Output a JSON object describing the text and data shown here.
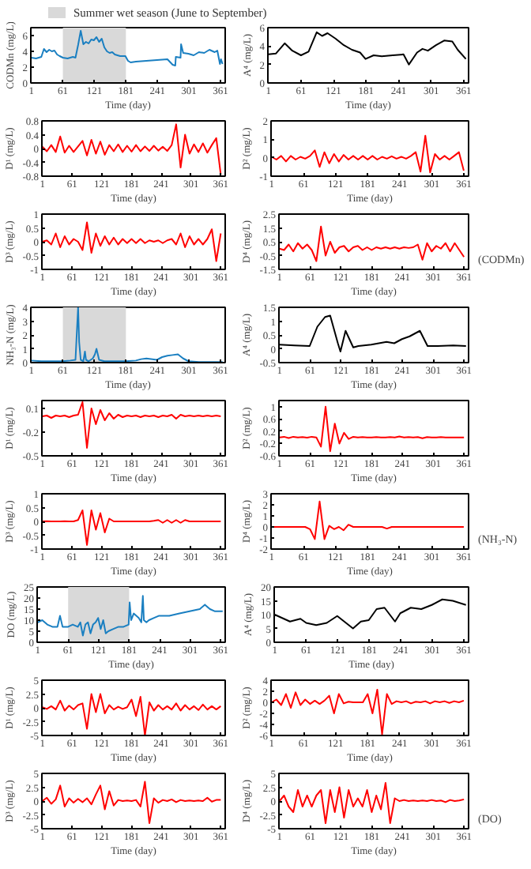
{
  "chart_data": [
    {
      "type": "line",
      "ylabel": "CODMn (mg/L)",
      "xlabel": "Time (day)",
      "xlim": [
        0,
        370
      ],
      "xticks": [
        1,
        61,
        121,
        181,
        241,
        301,
        361
      ],
      "ylim": [
        0,
        7
      ],
      "yticks": [
        0,
        2,
        4,
        6
      ],
      "legend": "top",
      "bands": [
        {
          "axis": "x",
          "from": 61,
          "to": 181,
          "label": "Summer wet season (June to September)",
          "color": "#d9d9d9"
        }
      ],
      "series": [
        {
          "color": "#1a7fc1",
          "x": [
            1,
            10,
            20,
            25,
            30,
            35,
            40,
            45,
            50,
            55,
            61,
            70,
            80,
            85,
            90,
            95,
            100,
            105,
            110,
            115,
            120,
            125,
            130,
            135,
            140,
            145,
            150,
            155,
            160,
            170,
            180,
            185,
            190,
            200,
            220,
            240,
            260,
            270,
            275,
            276,
            285,
            286,
            290,
            300,
            310,
            320,
            330,
            340,
            350,
            355,
            360,
            362,
            365
          ],
          "values": [
            3.2,
            3.1,
            3.3,
            4.3,
            3.9,
            4.2,
            4,
            4.1,
            3.6,
            3.4,
            3.2,
            3.1,
            3.3,
            3.2,
            4.8,
            6.6,
            4.9,
            5.2,
            5.0,
            5.5,
            5.4,
            5.8,
            5.2,
            5.6,
            4.5,
            4.0,
            3.8,
            3.9,
            3.6,
            3.4,
            3.4,
            2.8,
            2.6,
            2.7,
            2.8,
            2.9,
            3.0,
            2.3,
            2.2,
            3.3,
            3.2,
            4.9,
            3.8,
            3.7,
            3.5,
            3.9,
            3.8,
            4.2,
            3.9,
            4.1,
            2.4,
            3.0,
            2.4
          ]
        }
      ]
    },
    {
      "type": "line",
      "ylabel": "A⁴ (mg/L)",
      "xlabel": "Time (day)",
      "xlim": [
        0,
        370
      ],
      "xticks": [
        1,
        61,
        121,
        181,
        241,
        301,
        361
      ],
      "ylim": [
        0,
        6
      ],
      "yticks": [
        0,
        2,
        4,
        6
      ],
      "series": [
        {
          "color": "#000000",
          "x": [
            1,
            15,
            31,
            45,
            61,
            75,
            90,
            100,
            110,
            125,
            140,
            155,
            170,
            180,
            195,
            210,
            230,
            250,
            260,
            275,
            285,
            295,
            310,
            325,
            340,
            350,
            365
          ],
          "values": [
            3.1,
            3.2,
            4.3,
            3.5,
            3.0,
            3.4,
            5.5,
            5.1,
            5.4,
            4.8,
            4.1,
            3.6,
            3.3,
            2.6,
            3.0,
            2.9,
            3.0,
            3.1,
            2.0,
            3.3,
            3.7,
            3.5,
            4.1,
            4.6,
            4.5,
            3.6,
            2.6
          ]
        }
      ]
    },
    {
      "type": "line",
      "ylabel": "D¹ (mg/L)",
      "xlabel": "Time (day)",
      "xlim": [
        0,
        370
      ],
      "xticks": [
        1,
        61,
        121,
        181,
        241,
        301,
        361
      ],
      "ylim": [
        -0.8,
        0.8
      ],
      "yticks": [
        -0.8,
        -0.4,
        0,
        0.4,
        0.8
      ],
      "x": [
        1,
        10,
        19,
        28,
        37,
        46,
        55,
        64,
        73,
        82,
        91,
        100,
        109,
        118,
        127,
        136,
        145,
        154,
        163,
        172,
        181,
        190,
        199,
        208,
        217,
        226,
        235,
        244,
        253,
        262,
        271,
        280,
        289,
        298,
        307,
        316,
        325,
        334,
        343,
        352,
        361
      ],
      "series": [
        {
          "color": "#ff0000",
          "values": [
            0.05,
            -0.08,
            0.1,
            -0.1,
            0.35,
            -0.12,
            0.08,
            -0.1,
            0.06,
            0.22,
            -0.2,
            0.25,
            -0.15,
            0.2,
            -0.18,
            0.1,
            -0.08,
            0.12,
            -0.1,
            0.08,
            -0.09,
            0.1,
            -0.08,
            0.06,
            -0.07,
            0.08,
            -0.06,
            0.05,
            -0.07,
            0.1,
            0.7,
            -0.55,
            0.4,
            -0.15,
            0.12,
            -0.1,
            0.15,
            -0.12,
            0.1,
            0.3,
            -0.75
          ]
        }
      ]
    },
    {
      "type": "line",
      "ylabel": "D² (mg/L)",
      "xlabel": "Time (day)",
      "xlim": [
        0,
        370
      ],
      "xticks": [
        1,
        61,
        121,
        181,
        241,
        301,
        361
      ],
      "ylim": [
        -1,
        2
      ],
      "yticks": [
        -1,
        0,
        1,
        2
      ],
      "x": [
        1,
        10,
        19,
        28,
        37,
        46,
        55,
        64,
        73,
        82,
        91,
        100,
        109,
        118,
        127,
        136,
        145,
        154,
        163,
        172,
        181,
        190,
        199,
        208,
        217,
        226,
        235,
        244,
        253,
        262,
        271,
        280,
        289,
        298,
        307,
        316,
        325,
        334,
        343,
        352,
        361
      ],
      "series": [
        {
          "color": "#ff0000",
          "values": [
            0.05,
            -0.1,
            0.1,
            -0.2,
            0.1,
            -0.1,
            0.05,
            -0.05,
            0.1,
            0.4,
            -0.5,
            0.3,
            -0.3,
            0.2,
            -0.2,
            0.15,
            -0.1,
            0.1,
            -0.1,
            0.1,
            -0.1,
            0.1,
            -0.1,
            0.05,
            -0.05,
            0.08,
            -0.05,
            0.05,
            -0.05,
            0.1,
            0.3,
            -0.75,
            1.2,
            -0.8,
            0.2,
            -0.1,
            0.1,
            -0.1,
            0.1,
            0.3,
            -0.7
          ]
        }
      ]
    },
    {
      "type": "line",
      "ylabel": "D³ (mg/L)",
      "xlabel": "Time (day)",
      "xlim": [
        0,
        370
      ],
      "xticks": [
        1,
        61,
        121,
        181,
        241,
        301,
        361
      ],
      "ylim": [
        -1,
        1
      ],
      "yticks": [
        -1,
        -0.5,
        0,
        0.5,
        1
      ],
      "x": [
        1,
        10,
        19,
        28,
        37,
        46,
        55,
        64,
        73,
        82,
        91,
        100,
        109,
        118,
        127,
        136,
        145,
        154,
        163,
        172,
        181,
        190,
        199,
        208,
        217,
        226,
        235,
        244,
        253,
        262,
        271,
        280,
        289,
        298,
        307,
        316,
        325,
        334,
        343,
        352,
        361
      ],
      "series": [
        {
          "color": "#ff0000",
          "values": [
            0,
            0.05,
            -0.1,
            0.3,
            -0.2,
            0.2,
            -0.1,
            0.1,
            0,
            -0.3,
            0.7,
            -0.4,
            0.3,
            -0.15,
            0.2,
            -0.1,
            0.15,
            -0.1,
            0.1,
            -0.05,
            0.1,
            -0.05,
            0.1,
            -0.05,
            0.05,
            0,
            0.05,
            -0.05,
            0.05,
            0.1,
            -0.1,
            0.3,
            -0.2,
            0.2,
            -0.1,
            0.1,
            -0.1,
            0.1,
            0.45,
            -0.7,
            0.3
          ]
        }
      ]
    },
    {
      "type": "line",
      "ylabel": "D⁴ (mg/L)",
      "xlabel": "Time (day)",
      "xlim": [
        0,
        370
      ],
      "xticks": [
        1,
        61,
        121,
        181,
        241,
        301,
        361
      ],
      "ylim": [
        -1.5,
        2.5
      ],
      "yticks": [
        -1.5,
        -0.5,
        0.5,
        1.5,
        2.5
      ],
      "annotations": [
        "(CODMn)"
      ],
      "x": [
        1,
        10,
        19,
        28,
        37,
        46,
        55,
        64,
        73,
        82,
        91,
        100,
        109,
        118,
        127,
        136,
        145,
        154,
        163,
        172,
        181,
        190,
        199,
        208,
        217,
        226,
        235,
        244,
        253,
        262,
        271,
        280,
        289,
        298,
        307,
        316,
        325,
        334,
        343,
        352,
        361
      ],
      "series": [
        {
          "color": "#ff0000",
          "values": [
            0,
            -0.1,
            0.3,
            -0.2,
            0.4,
            0,
            0.3,
            -0.1,
            -0.9,
            1.6,
            -0.5,
            0.5,
            -0.3,
            0.1,
            0.2,
            -0.2,
            0.1,
            0.2,
            -0.1,
            0.1,
            -0.1,
            0.1,
            0,
            0.1,
            0,
            0.1,
            0,
            0.1,
            0.05,
            0.1,
            0.3,
            -0.8,
            0.4,
            -0.2,
            0.2,
            0,
            0.4,
            -0.2,
            0.4,
            -0.1,
            -0.6
          ]
        }
      ]
    },
    {
      "type": "line",
      "ylabel": "NH₃-N (mg/L)",
      "xlabel": "Time (day)",
      "xlim": [
        0,
        370
      ],
      "xticks": [
        1,
        61,
        121,
        181,
        241,
        301,
        361
      ],
      "ylim": [
        0,
        4
      ],
      "yticks": [
        0,
        1,
        2,
        3,
        4
      ],
      "bands": [
        {
          "axis": "x",
          "from": 61,
          "to": 181,
          "color": "#d9d9d9"
        }
      ],
      "series": [
        {
          "color": "#1a7fc1",
          "x": [
            1,
            20,
            40,
            60,
            75,
            85,
            88,
            90,
            92,
            95,
            100,
            103,
            105,
            110,
            118,
            122,
            125,
            130,
            140,
            160,
            180,
            200,
            210,
            220,
            240,
            250,
            260,
            270,
            280,
            290,
            300,
            320,
            340,
            365
          ],
          "values": [
            0.15,
            0.1,
            0.1,
            0.1,
            0.15,
            0.2,
            2.5,
            4.0,
            1.5,
            0.2,
            0.1,
            0.8,
            0.2,
            0.1,
            0.3,
            0.6,
            1.0,
            0.2,
            0.1,
            0.1,
            0.1,
            0.15,
            0.25,
            0.3,
            0.2,
            0.4,
            0.5,
            0.55,
            0.6,
            0.3,
            0.1,
            0.05,
            0.05,
            0.05
          ]
        }
      ]
    },
    {
      "type": "line",
      "ylabel": "A⁴ (mg/L)",
      "xlabel": "Time (day)",
      "xlim": [
        0,
        370
      ],
      "xticks": [
        1,
        61,
        121,
        181,
        241,
        301,
        361
      ],
      "ylim": [
        -0.5,
        1.5
      ],
      "yticks": [
        -0.5,
        0,
        0.5,
        1,
        1.5
      ],
      "series": [
        {
          "color": "#000000",
          "x": [
            1,
            30,
            60,
            75,
            90,
            100,
            115,
            120,
            130,
            145,
            155,
            180,
            210,
            225,
            240,
            255,
            275,
            290,
            310,
            340,
            365
          ],
          "values": [
            0.15,
            0.12,
            0.1,
            0.8,
            1.15,
            1.2,
            0.2,
            -0.1,
            0.65,
            0.05,
            0.1,
            0.15,
            0.25,
            0.2,
            0.35,
            0.45,
            0.65,
            0.1,
            0.1,
            0.12,
            0.1
          ]
        }
      ]
    },
    {
      "type": "line",
      "ylabel": "D¹ (mg/L)",
      "xlabel": "Time (day)",
      "xlim": [
        0,
        370
      ],
      "xticks": [
        1,
        61,
        121,
        181,
        241,
        301,
        361
      ],
      "ylim": [
        -0.5,
        0.2
      ],
      "yticks": [
        -0.5,
        -0.2,
        0.1
      ],
      "x": [
        1,
        10,
        19,
        28,
        37,
        46,
        55,
        64,
        73,
        82,
        91,
        100,
        109,
        118,
        127,
        136,
        145,
        154,
        163,
        172,
        181,
        190,
        199,
        208,
        217,
        226,
        235,
        244,
        253,
        262,
        271,
        280,
        289,
        298,
        307,
        316,
        325,
        334,
        343,
        352,
        361
      ],
      "series": [
        {
          "color": "#ff0000",
          "values": [
            0,
            0.01,
            -0.02,
            0.01,
            0,
            0.01,
            -0.01,
            0.01,
            0.02,
            0.18,
            -0.4,
            0.1,
            -0.1,
            0.08,
            -0.05,
            0.04,
            -0.03,
            0.02,
            -0.01,
            0.01,
            0,
            0.01,
            -0.01,
            0.01,
            0,
            0.01,
            -0.01,
            0.01,
            0,
            0.02,
            -0.03,
            0.02,
            0,
            0.01,
            0,
            0.01,
            0,
            0.01,
            0,
            0.01,
            0
          ]
        }
      ]
    },
    {
      "type": "line",
      "ylabel": "D² (mg/L)",
      "xlabel": "Time (day)",
      "xlim": [
        0,
        370
      ],
      "xticks": [
        1,
        61,
        121,
        181,
        241,
        301,
        361
      ],
      "ylim": [
        -0.6,
        1.2
      ],
      "yticks": [
        -0.6,
        -0.2,
        0.2,
        0.6,
        1
      ],
      "x": [
        1,
        10,
        19,
        28,
        37,
        46,
        55,
        64,
        73,
        82,
        91,
        100,
        109,
        118,
        127,
        136,
        145,
        154,
        163,
        172,
        181,
        190,
        199,
        208,
        217,
        226,
        235,
        244,
        253,
        262,
        271,
        280,
        289,
        298,
        307,
        316,
        325,
        334,
        343,
        352,
        361
      ],
      "series": [
        {
          "color": "#ff0000",
          "values": [
            0,
            0.02,
            -0.02,
            0.02,
            0,
            0.01,
            -0.01,
            0.02,
            0,
            -0.3,
            1.0,
            -0.45,
            0.45,
            -0.2,
            0.15,
            -0.05,
            0.02,
            0,
            0.01,
            0,
            0,
            0.01,
            0,
            0,
            0.01,
            0,
            0.03,
            0,
            0.01,
            0,
            0.01,
            -0.03,
            0.01,
            0,
            0,
            0.01,
            0,
            0,
            0,
            0,
            0
          ]
        }
      ]
    },
    {
      "type": "line",
      "ylabel": "D³ (mg/L)",
      "xlabel": "Time (day)",
      "xlim": [
        0,
        370
      ],
      "xticks": [
        1,
        61,
        121,
        181,
        241,
        301,
        361
      ],
      "ylim": [
        -1,
        1
      ],
      "yticks": [
        -1,
        -0.5,
        0,
        0.5,
        1
      ],
      "x": [
        1,
        10,
        19,
        28,
        37,
        46,
        55,
        64,
        73,
        82,
        91,
        100,
        109,
        118,
        127,
        136,
        145,
        154,
        163,
        172,
        181,
        190,
        199,
        208,
        217,
        226,
        235,
        244,
        253,
        262,
        271,
        280,
        289,
        298,
        307,
        316,
        325,
        334,
        343,
        352,
        361
      ],
      "series": [
        {
          "color": "#ff0000",
          "values": [
            0,
            0.01,
            0,
            0,
            0,
            0.01,
            0,
            0,
            0.05,
            0.4,
            -0.85,
            0.4,
            -0.3,
            0.3,
            -0.4,
            0.1,
            0,
            0,
            0,
            0,
            0,
            0,
            0,
            0,
            0,
            0.02,
            0.05,
            -0.05,
            0.05,
            -0.05,
            0.05,
            -0.05,
            0.05,
            0,
            0,
            0,
            0,
            0,
            0,
            0,
            0
          ]
        }
      ]
    },
    {
      "type": "line",
      "ylabel": "D⁴ (mg/L)",
      "xlabel": "Time (day)",
      "xlim": [
        0,
        370
      ],
      "xticks": [
        1,
        61,
        121,
        181,
        241,
        301,
        361
      ],
      "ylim": [
        -2,
        3
      ],
      "yticks": [
        -2,
        -1,
        0,
        1,
        2,
        3
      ],
      "annotations": [
        "(NH₃-N)"
      ],
      "x": [
        1,
        10,
        19,
        28,
        37,
        46,
        55,
        64,
        73,
        82,
        91,
        100,
        109,
        118,
        127,
        136,
        145,
        154,
        163,
        172,
        181,
        190,
        199,
        208,
        217,
        226,
        235,
        244,
        253,
        262,
        271,
        280,
        289,
        298,
        307,
        316,
        325,
        334,
        343,
        352,
        361
      ],
      "series": [
        {
          "color": "#ff0000",
          "values": [
            0,
            0,
            0,
            0,
            0,
            0,
            0,
            0,
            -0.2,
            -1.1,
            2.3,
            -1.1,
            0.1,
            -0.2,
            0,
            -0.3,
            0.2,
            0,
            0,
            0,
            0,
            0,
            0,
            0,
            -0.15,
            0,
            0,
            0,
            0,
            0,
            0,
            0,
            0,
            0,
            0,
            0,
            0,
            0,
            0,
            0,
            0
          ]
        }
      ]
    },
    {
      "type": "line",
      "ylabel": "DO (mg/L)",
      "xlabel": "Time (day)",
      "xlim": [
        0,
        370
      ],
      "xticks": [
        1,
        61,
        121,
        181,
        241,
        301,
        361
      ],
      "ylim": [
        0,
        25
      ],
      "yticks": [
        0,
        5,
        10,
        15,
        20,
        25
      ],
      "bands": [
        {
          "axis": "x",
          "from": 61,
          "to": 181,
          "color": "#d9d9d9"
        }
      ],
      "series": [
        {
          "color": "#1a7fc1",
          "x": [
            1,
            10,
            20,
            30,
            40,
            45,
            50,
            61,
            70,
            80,
            85,
            90,
            95,
            100,
            105,
            110,
            115,
            120,
            125,
            130,
            135,
            140,
            150,
            160,
            170,
            180,
            182,
            185,
            190,
            200,
            205,
            208,
            210,
            215,
            220,
            230,
            240,
            260,
            280,
            300,
            320,
            330,
            340,
            350,
            365
          ],
          "values": [
            9,
            10,
            8,
            7,
            7,
            12,
            7,
            7,
            8,
            7,
            9,
            3,
            8,
            9,
            4,
            8,
            9,
            11,
            6,
            10,
            4,
            5,
            6,
            7,
            7,
            8,
            18,
            10,
            13,
            11,
            9,
            21,
            10,
            9,
            10,
            11,
            12,
            12,
            13,
            14,
            15,
            17,
            15,
            14,
            14
          ]
        }
      ]
    },
    {
      "type": "line",
      "ylabel": "A⁴ (mg/L)",
      "xlabel": "Time (day)",
      "xlim": [
        0,
        370
      ],
      "xticks": [
        1,
        61,
        121,
        181,
        241,
        301,
        361
      ],
      "ylim": [
        0,
        20
      ],
      "yticks": [
        0,
        5,
        10,
        15,
        20
      ],
      "series": [
        {
          "color": "#000000",
          "x": [
            1,
            30,
            50,
            61,
            80,
            100,
            120,
            130,
            150,
            165,
            180,
            195,
            210,
            220,
            230,
            240,
            260,
            280,
            300,
            320,
            340,
            365
          ],
          "values": [
            10,
            7.5,
            8.5,
            7,
            6.2,
            7,
            9.5,
            8,
            5,
            7.5,
            8,
            12,
            12.5,
            10,
            7.5,
            10.5,
            12.5,
            12,
            13.5,
            15.5,
            15,
            13.5
          ]
        }
      ]
    },
    {
      "type": "line",
      "ylabel": "D¹ (mg/L)",
      "xlabel": "Time (day)",
      "xlim": [
        0,
        370
      ],
      "xticks": [
        1,
        61,
        121,
        181,
        241,
        301,
        361
      ],
      "ylim": [
        -5,
        5
      ],
      "yticks": [
        -5,
        -2.5,
        0,
        2.5,
        5
      ],
      "x": [
        1,
        10,
        19,
        28,
        37,
        46,
        55,
        64,
        73,
        82,
        91,
        100,
        109,
        118,
        127,
        136,
        145,
        154,
        163,
        172,
        181,
        190,
        199,
        208,
        217,
        226,
        235,
        244,
        253,
        262,
        271,
        280,
        289,
        298,
        307,
        316,
        325,
        334,
        343,
        352,
        361
      ],
      "series": [
        {
          "color": "#ff0000",
          "values": [
            0.1,
            -0.2,
            0.3,
            -0.3,
            1.3,
            -0.5,
            0.4,
            -0.3,
            0.5,
            0.8,
            -3.8,
            2.5,
            -0.8,
            2.5,
            -1,
            0.5,
            -0.3,
            0.2,
            -0.2,
            0.1,
            1.5,
            -1.5,
            2,
            -5,
            1,
            -0.5,
            0.5,
            -0.3,
            0.3,
            -0.3,
            0.8,
            -0.5,
            0.5,
            -0.3,
            0.3,
            -0.4,
            0.6,
            -0.3,
            0.3,
            -0.3,
            0.3
          ]
        }
      ]
    },
    {
      "type": "line",
      "ylabel": "D² (mg/L)",
      "xlabel": "Time (day)",
      "xlim": [
        0,
        370
      ],
      "xticks": [
        1,
        61,
        121,
        181,
        241,
        301,
        361
      ],
      "ylim": [
        -6,
        4
      ],
      "yticks": [
        -6,
        -4,
        -2,
        0,
        2,
        4
      ],
      "x": [
        1,
        10,
        19,
        28,
        37,
        46,
        55,
        64,
        73,
        82,
        91,
        100,
        109,
        118,
        127,
        136,
        145,
        154,
        163,
        172,
        181,
        190,
        199,
        208,
        217,
        226,
        235,
        244,
        253,
        262,
        271,
        280,
        289,
        298,
        307,
        316,
        325,
        334,
        343,
        352,
        361
      ],
      "series": [
        {
          "color": "#ff0000",
          "values": [
            0,
            0.5,
            -0.5,
            1.5,
            -1,
            1.8,
            -0.5,
            0.5,
            -0.3,
            0.3,
            -0.3,
            0.3,
            1.2,
            -2,
            1.5,
            -0.2,
            0.1,
            0,
            0,
            0,
            1.5,
            -2,
            2.3,
            -5.8,
            1.5,
            -0.3,
            0.2,
            0,
            0.2,
            -0.2,
            0.1,
            0,
            0.2,
            -0.2,
            0.2,
            0,
            0.2,
            -0.1,
            0.2,
            0,
            0.3
          ]
        }
      ]
    },
    {
      "type": "line",
      "ylabel": "D³ (mg/L)",
      "xlabel": "Time (day)",
      "xlim": [
        0,
        370
      ],
      "xticks": [
        1,
        61,
        121,
        181,
        241,
        301,
        361
      ],
      "ylim": [
        -5,
        5
      ],
      "yticks": [
        -5,
        -2.5,
        0,
        2.5,
        5
      ],
      "x": [
        1,
        10,
        19,
        28,
        37,
        46,
        55,
        64,
        73,
        82,
        91,
        100,
        109,
        118,
        127,
        136,
        145,
        154,
        163,
        172,
        181,
        190,
        199,
        208,
        217,
        226,
        235,
        244,
        253,
        262,
        271,
        280,
        289,
        298,
        307,
        316,
        325,
        334,
        343,
        352,
        361
      ],
      "series": [
        {
          "color": "#ff0000",
          "values": [
            0,
            0.6,
            -0.5,
            0.3,
            2.8,
            -1,
            0.5,
            -0.3,
            0.4,
            -0.2,
            0.5,
            -0.6,
            1.2,
            2.8,
            -1.5,
            1.8,
            -0.8,
            0.2,
            0,
            0.1,
            0,
            0.2,
            -1,
            3.5,
            -4,
            0.5,
            -0.3,
            0.2,
            0,
            0.3,
            -0.2,
            0.2,
            0,
            0.1,
            0,
            0.1,
            0,
            0.6,
            -0.1,
            0.2,
            0.2
          ]
        }
      ]
    },
    {
      "type": "line",
      "ylabel": "D⁴ (mg/L)",
      "xlabel": "Time (day)",
      "xlim": [
        0,
        370
      ],
      "xticks": [
        1,
        61,
        121,
        181,
        241,
        301,
        361
      ],
      "ylim": [
        -5,
        5
      ],
      "yticks": [
        -5,
        -2.5,
        0,
        2.5,
        5
      ],
      "annotations": [
        "(DO)"
      ],
      "x": [
        1,
        10,
        19,
        28,
        37,
        46,
        55,
        64,
        73,
        82,
        91,
        100,
        109,
        118,
        127,
        136,
        145,
        154,
        163,
        172,
        181,
        190,
        199,
        208,
        217,
        226,
        235,
        244,
        253,
        262,
        271,
        280,
        289,
        298,
        307,
        316,
        325,
        334,
        343,
        352,
        361
      ],
      "series": [
        {
          "color": "#ff0000",
          "values": [
            0,
            1,
            -1,
            -2,
            2,
            -1,
            1,
            -1,
            1,
            2,
            -4,
            2,
            -2,
            2.5,
            -3,
            2,
            -1,
            0.5,
            -1,
            2,
            -2,
            1,
            -1.5,
            3.3,
            -4,
            0.5,
            0,
            0.2,
            0,
            0.1,
            0,
            0.1,
            0,
            0.2,
            0,
            0.1,
            -0.2,
            0.2,
            0,
            0.1,
            0.3
          ]
        }
      ]
    }
  ]
}
